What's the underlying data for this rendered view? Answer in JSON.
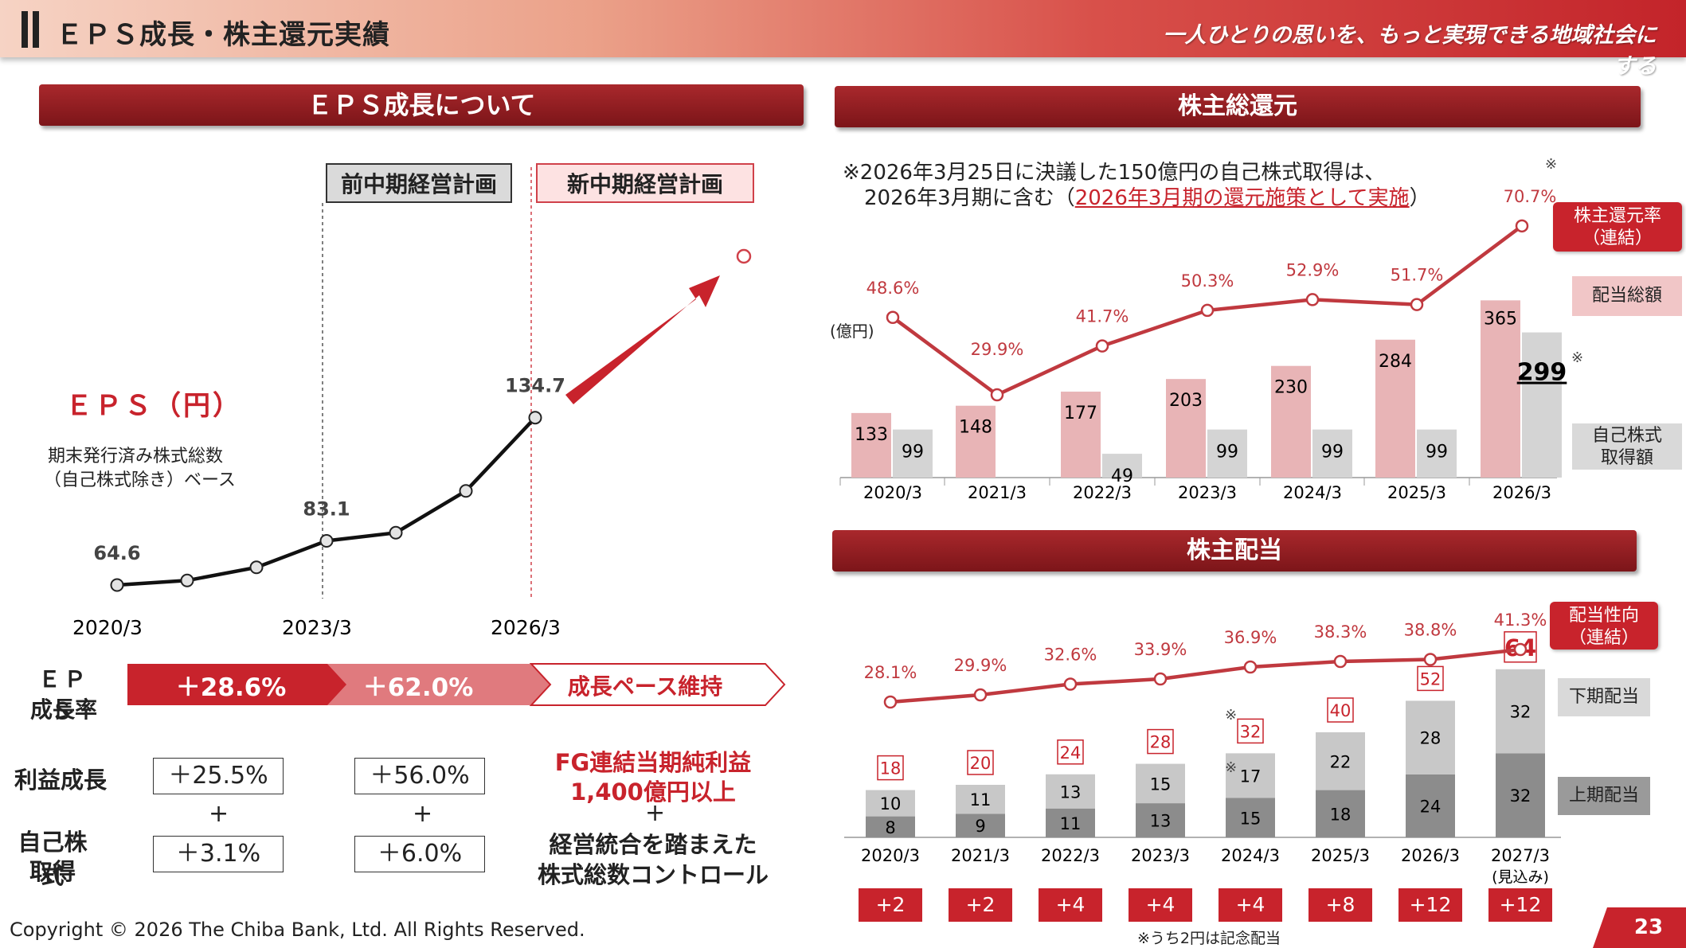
{
  "header": {
    "title": "ＥＰＳ成長・株主還元実績",
    "slogan": "一人ひとりの思いを、もっと実現できる地域社会にする",
    "accent_color": "#c8232c"
  },
  "eps_section": {
    "title": "ＥＰＳ成長について",
    "prev_plan_label": "前中期経営計画",
    "new_plan_label": "新中期経営計画",
    "eps_label": "ＥＰＳ（円）",
    "note_line1": "期末発行済み株式総数",
    "note_line2": "（自己株式除き）ベース",
    "growth_rate_label_1": "ＥＰＳ",
    "growth_rate_label_2": "成長率",
    "growth_1": "＋28.6%",
    "growth_2": "＋62.0%",
    "growth_3": "成長ペース維持",
    "profit_growth_label": "利益成長",
    "profit_growth_1": "＋25.5%",
    "profit_growth_2": "＋56.0%",
    "plus_sign": "+",
    "buyback_label_1": "自己株式",
    "buyback_label_2": "取得",
    "buyback_1": "＋3.1%",
    "buyback_2": "＋6.0%",
    "target_line1": "FG連結当期純利益",
    "target_line2": "1,400億円以上",
    "target_line3": "経営統合を踏まえた",
    "target_line4": "株式総数コントロール"
  },
  "return_section": {
    "title": "株主総還元",
    "note_line1": "※2026年3月25日に決議した150億円の自己株式取得は、",
    "note_line2a": "2026年3月期に含む（",
    "note_line2b": "2026年3月期の還元施策として実施",
    "note_line2c": "）",
    "unit": "(億円)",
    "legend_rate_1": "株主還元率",
    "legend_rate_2": "（連結）",
    "legend_dividend": "配当総額",
    "legend_buyback_1": "自己株式",
    "legend_buyback_2": "取得額",
    "asterisk": "※"
  },
  "dividend_section": {
    "title": "株主配当",
    "legend_payout_1": "配当性向",
    "legend_payout_2": "（連結）",
    "legend_second_half": "下期配当",
    "legend_first_half": "上期配当",
    "footnote": "※うち2円は記念配当",
    "asterisk": "※"
  },
  "footer": {
    "copyright": "Copyright © 2026 The Chiba Bank, Ltd. All Rights Reserved.",
    "page_number": "23"
  },
  "chart_data": [
    {
      "type": "line",
      "title": "ＥＰＳ（円）",
      "x": [
        "2020/3",
        "2021/3",
        "2022/3",
        "2023/3",
        "2024/3",
        "2025/3",
        "2026/3"
      ],
      "x_tick_labels": [
        "2020/3",
        "2023/3",
        "2026/3"
      ],
      "values": [
        64.6,
        66.5,
        72.0,
        83.1,
        86.5,
        104.0,
        134.7
      ],
      "data_labels": {
        "2020/3": "64.6",
        "2023/3": "83.1",
        "2026/3": "134.7"
      },
      "ylim": [
        50,
        230
      ]
    },
    {
      "type": "bar",
      "title": "株主総還元",
      "categories": [
        "2020/3",
        "2021/3",
        "2022/3",
        "2023/3",
        "2024/3",
        "2025/3",
        "2026/3"
      ],
      "series": [
        {
          "name": "配当総額",
          "values": [
            133,
            148,
            177,
            203,
            230,
            284,
            365
          ],
          "color": "#e8b4b6"
        },
        {
          "name": "自己株式取得額",
          "values": [
            99,
            0,
            49,
            99,
            99,
            99,
            299
          ],
          "color": "#d4d4d4"
        },
        {
          "name": "株主還元率（連結）",
          "type": "line",
          "values": [
            48.6,
            29.9,
            41.7,
            50.3,
            52.9,
            51.7,
            70.7
          ],
          "labels": [
            "48.6%",
            "29.9%",
            "41.7%",
            "50.3%",
            "52.9%",
            "51.7%",
            "70.7%"
          ],
          "color": "#c0393f"
        }
      ],
      "ylabel": "(億円)"
    },
    {
      "type": "bar",
      "title": "株主配当",
      "categories": [
        "2020/3",
        "2021/3",
        "2022/3",
        "2023/3",
        "2024/3",
        "2025/3",
        "2026/3",
        "2027/3"
      ],
      "category_sublabels": [
        "",
        "",
        "",
        "",
        "",
        "",
        "",
        "(見込み)"
      ],
      "series": [
        {
          "name": "上期配当",
          "values": [
            8,
            9,
            11,
            13,
            15,
            18,
            24,
            32
          ],
          "color": "#8c8c8c"
        },
        {
          "name": "下期配当",
          "values": [
            10,
            11,
            13,
            15,
            17,
            22,
            28,
            32
          ],
          "color": "#c8c8c8"
        },
        {
          "name": "配当性向（連結）",
          "type": "line",
          "values": [
            28.1,
            29.9,
            32.6,
            33.9,
            36.9,
            38.3,
            38.8,
            41.3
          ],
          "labels": [
            "28.1%",
            "29.9%",
            "32.6%",
            "33.9%",
            "36.9%",
            "38.3%",
            "38.8%",
            "41.3%"
          ],
          "color": "#c0393f"
        }
      ],
      "totals": [
        "18",
        "20",
        "24",
        "28",
        "32",
        "40",
        "52",
        "64"
      ],
      "increments": [
        "+2",
        "+2",
        "+4",
        "+4",
        "+4",
        "+8",
        "+12",
        "+12"
      ]
    }
  ]
}
